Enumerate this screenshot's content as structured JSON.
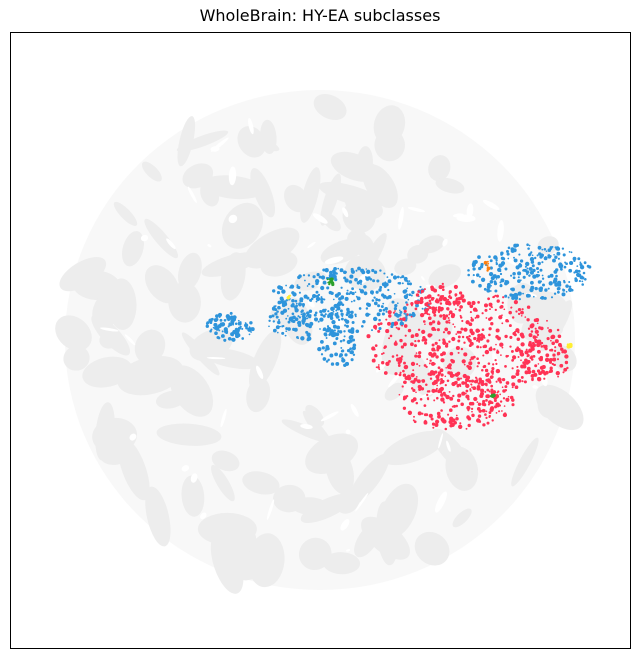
{
  "chart_data": {
    "type": "scatter",
    "title": "WholeBrain: HY-EA subclasses",
    "xlabel": "",
    "ylabel": "",
    "axes_ticks": "none",
    "legend": "none",
    "background_color": "#f2f2f2",
    "series": [
      {
        "color": "#2e94db",
        "clusters": [
          {
            "cx": 530,
            "cy": 272,
            "rx": 62,
            "ry": 28,
            "n": 260
          },
          {
            "cx": 350,
            "cy": 300,
            "rx": 80,
            "ry": 32,
            "n": 300
          },
          {
            "cx": 310,
            "cy": 318,
            "rx": 45,
            "ry": 22,
            "n": 120
          },
          {
            "cx": 230,
            "cy": 327,
            "rx": 24,
            "ry": 14,
            "n": 90
          },
          {
            "cx": 338,
            "cy": 345,
            "rx": 20,
            "ry": 22,
            "n": 60
          }
        ]
      },
      {
        "color": "#ff3355",
        "clusters": [
          {
            "cx": 465,
            "cy": 345,
            "rx": 98,
            "ry": 52,
            "n": 520
          },
          {
            "cx": 455,
            "cy": 400,
            "rx": 60,
            "ry": 30,
            "n": 200
          },
          {
            "cx": 440,
            "cy": 300,
            "rx": 25,
            "ry": 18,
            "n": 60
          },
          {
            "cx": 545,
            "cy": 360,
            "rx": 25,
            "ry": 20,
            "n": 60
          }
        ]
      },
      {
        "color": "#2ca02c",
        "clusters": [
          {
            "cx": 330,
            "cy": 282,
            "rx": 4,
            "ry": 4,
            "n": 10
          },
          {
            "cx": 493,
            "cy": 396,
            "rx": 2,
            "ry": 2,
            "n": 3
          }
        ]
      },
      {
        "color": "#ff7f0e",
        "clusters": [
          {
            "cx": 487,
            "cy": 266,
            "rx": 2,
            "ry": 5,
            "n": 6
          }
        ]
      },
      {
        "color": "#ffee33",
        "clusters": [
          {
            "cx": 287,
            "cy": 296,
            "rx": 4,
            "ry": 2,
            "n": 4
          },
          {
            "cx": 568,
            "cy": 344,
            "rx": 4,
            "ry": 3,
            "n": 5
          }
        ]
      }
    ]
  }
}
